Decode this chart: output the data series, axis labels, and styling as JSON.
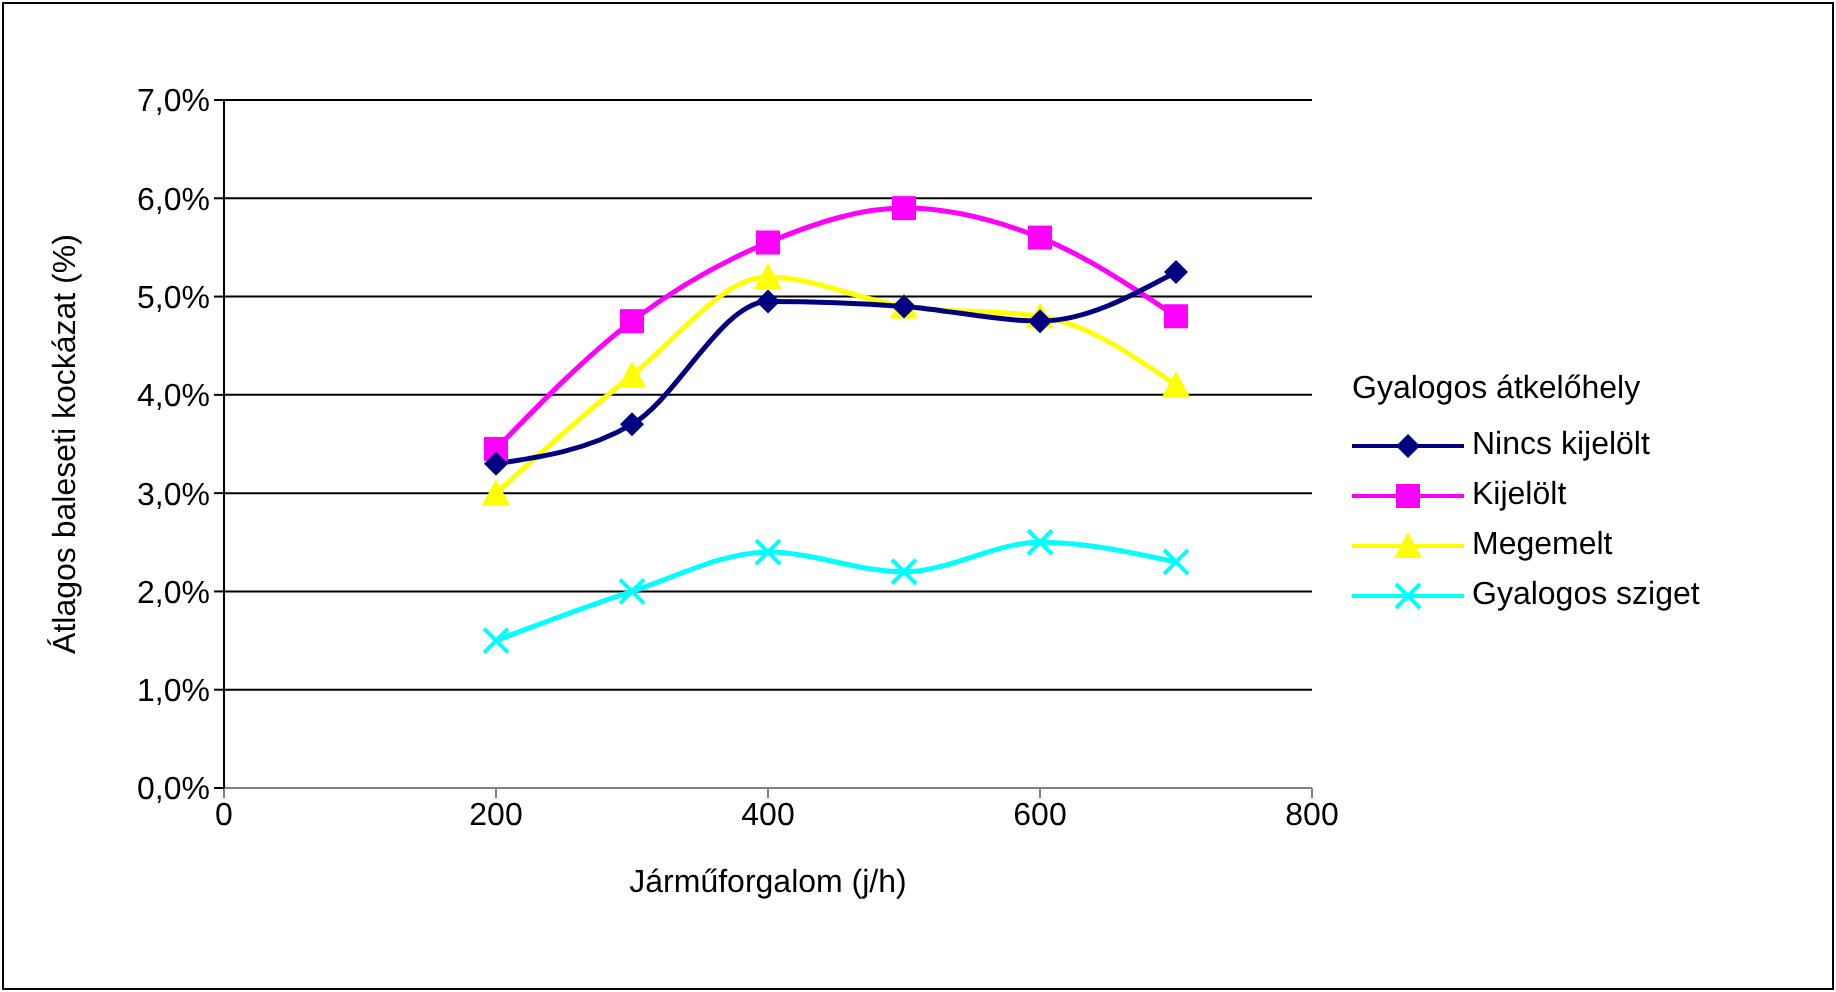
{
  "chart_data": {
    "type": "line",
    "xlabel": "Járműforgalom (j/h)",
    "ylabel": "Átlagos baleseti kockázat (%)",
    "legend_title": "Gyalogos átkelőhely",
    "x": [
      200,
      300,
      400,
      500,
      600,
      700
    ],
    "series": [
      {
        "name": "Nincs kijelölt",
        "color": "#000080",
        "marker": "diamond",
        "values": [
          3.3,
          3.7,
          4.95,
          4.9,
          4.75,
          5.25
        ]
      },
      {
        "name": "Kijelölt",
        "color": "#ff00ff",
        "marker": "square",
        "values": [
          3.45,
          4.75,
          5.55,
          5.9,
          5.6,
          4.8
        ]
      },
      {
        "name": "Megemelt",
        "color": "#ffff00",
        "marker": "triangle",
        "values": [
          3.0,
          4.2,
          5.2,
          4.9,
          4.8,
          4.1
        ]
      },
      {
        "name": "Gyalogos sziget",
        "color": "#00ffff",
        "marker": "cross",
        "values": [
          1.5,
          2.0,
          2.4,
          2.2,
          2.5,
          2.3
        ]
      }
    ],
    "xlim": [
      0,
      800
    ],
    "xticks": [
      0,
      200,
      400,
      600,
      800
    ],
    "ylim": [
      0,
      7
    ],
    "yticks": [
      {
        "value": 0,
        "label": "0,0%"
      },
      {
        "value": 1,
        "label": "1,0%"
      },
      {
        "value": 2,
        "label": "2,0%"
      },
      {
        "value": 3,
        "label": "3,0%"
      },
      {
        "value": 4,
        "label": "4,0%"
      },
      {
        "value": 5,
        "label": "5,0%"
      },
      {
        "value": 6,
        "label": "6,0%"
      },
      {
        "value": 7,
        "label": "7,0%"
      }
    ],
    "grid": "y",
    "legend": "right"
  }
}
